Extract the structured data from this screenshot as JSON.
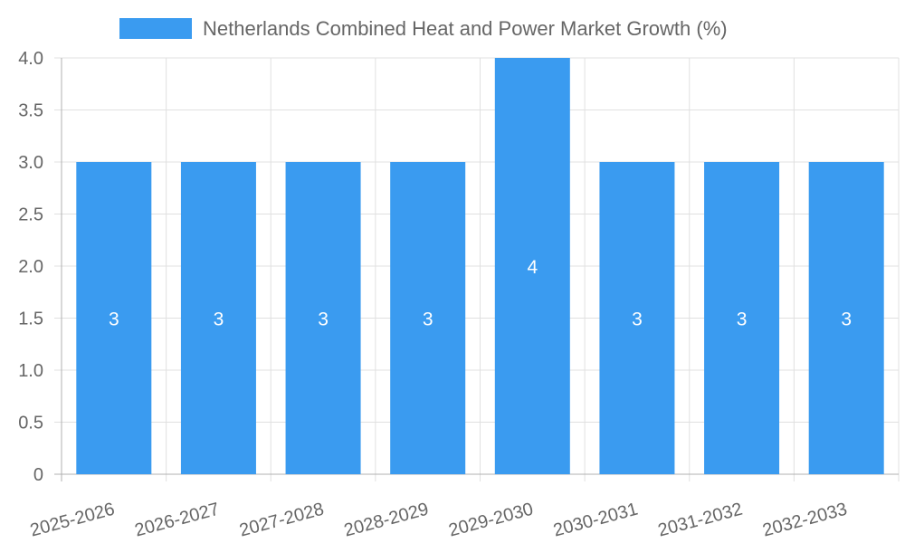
{
  "chart_data": {
    "type": "bar",
    "title": "",
    "xlabel": "",
    "ylabel": "",
    "categories": [
      "2025-2026",
      "2026-2027",
      "2027-2028",
      "2028-2029",
      "2029-2030",
      "2030-2031",
      "2031-2032",
      "2032-2033"
    ],
    "series": [
      {
        "name": "Netherlands Combined Heat and Power Market Growth (%)",
        "values": [
          3,
          3,
          3,
          3,
          4,
          3,
          3,
          3
        ],
        "color": "#3a9bf0"
      }
    ],
    "ylim": [
      0,
      4
    ],
    "yticks": [
      "0",
      "0.5",
      "1.0",
      "1.5",
      "2.0",
      "2.5",
      "3.0",
      "3.5",
      "4.0"
    ],
    "grid": true,
    "legend_position": "top-center",
    "data_labels": [
      "3",
      "3",
      "3",
      "3",
      "4",
      "3",
      "3",
      "3"
    ]
  },
  "colors": {
    "bar": "#3a9bf0",
    "grid": "#e0e0e0",
    "axis": "#b0b0b0",
    "tick_text": "#666666",
    "data_label_text": "#ffffff"
  }
}
